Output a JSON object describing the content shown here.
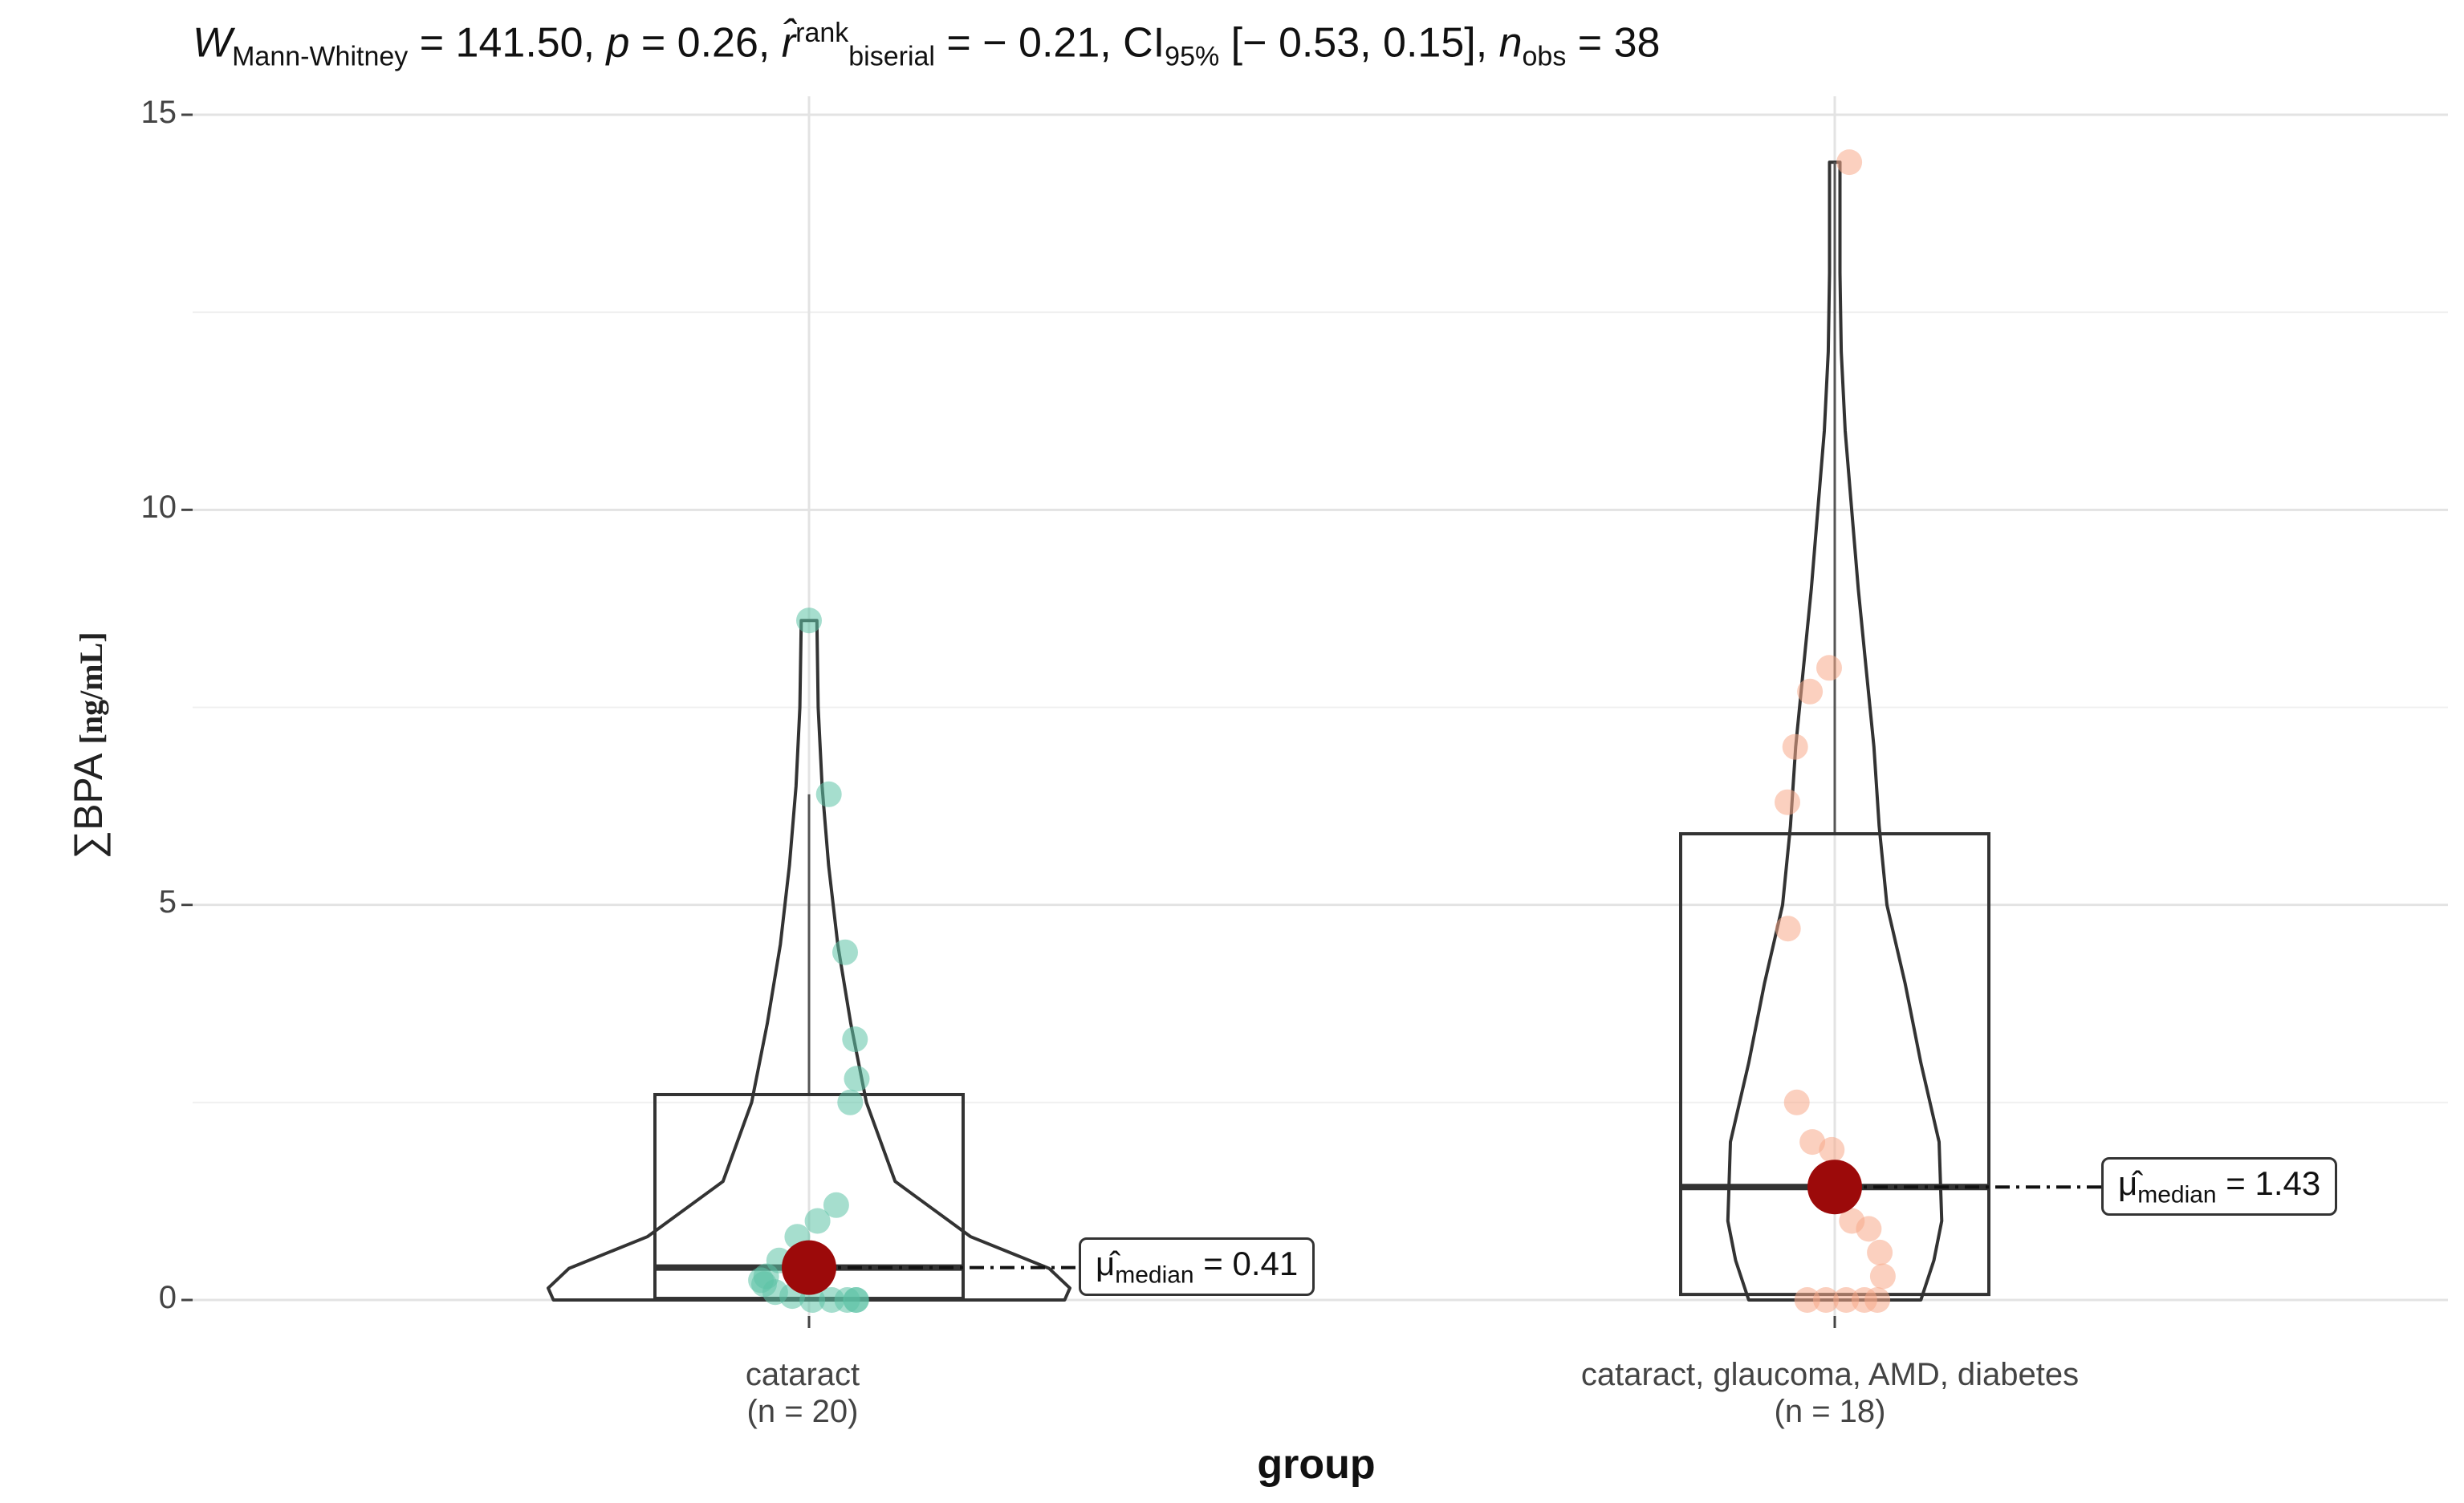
{
  "chart_data": {
    "type": "violin-box-scatter",
    "subtitle": {
      "w_symbol": "W",
      "w_sub": "Mann-Whitney",
      "w_value": " = 141.50, ",
      "p_symbol": "p",
      "p_value": " = 0.26, ",
      "r_symbol": "r̂",
      "r_sup": "rank",
      "r_sub": "biserial",
      "r_value": " = − 0.21, CI",
      "ci_sub": "95%",
      "ci_value": " [− 0.53, 0.15], ",
      "n_symbol": "n",
      "n_sub": "obs",
      "n_value": " = 38"
    },
    "ylabel_main": "∑BPA",
    "ylabel_unit": "[ng/mL]",
    "xlabel": "group",
    "ylim": [
      0,
      15
    ],
    "yticks": [
      "0",
      "5",
      "10",
      "15"
    ],
    "grid": true,
    "groups": [
      {
        "name": "cataract",
        "n_label": "(n = 20)",
        "color": "#5cc2a6",
        "box": {
          "q1": 0.02,
          "median": 0.41,
          "q3": 2.6,
          "whisker_low": 0.0,
          "whisker_high": 6.4,
          "max": 8.6
        },
        "median_label_mu": "μ̂",
        "median_label_sub": "median",
        "median_label_value": " = 0.41",
        "points": [
          8.6,
          6.4,
          4.4,
          3.3,
          2.8,
          2.5,
          1.2,
          1.0,
          0.8,
          0.5,
          0.3,
          0.25,
          0.2,
          0.1,
          0.05,
          0.0,
          0.0,
          0.0,
          0.0,
          0.0
        ],
        "violin": [
          [
            0.0,
            0.98
          ],
          [
            0.15,
            1.0
          ],
          [
            0.4,
            0.92
          ],
          [
            0.8,
            0.62
          ],
          [
            1.5,
            0.33
          ],
          [
            2.5,
            0.22
          ],
          [
            3.5,
            0.16
          ],
          [
            4.5,
            0.11
          ],
          [
            5.5,
            0.075
          ],
          [
            6.5,
            0.05
          ],
          [
            7.5,
            0.035
          ],
          [
            8.6,
            0.03
          ]
        ]
      },
      {
        "name": "cataract, glaucoma, AMD, diabetes",
        "n_label": "(n = 18)",
        "color": "#f7a98a",
        "box": {
          "q1": 0.07,
          "median": 1.43,
          "q3": 5.9,
          "whisker_low": 0.0,
          "whisker_high": 14.4,
          "max": 14.4
        },
        "median_label_mu": "μ̂",
        "median_label_sub": "median",
        "median_label_value": " = 1.43",
        "points": [
          14.4,
          8.0,
          7.7,
          7.0,
          6.3,
          4.7,
          2.5,
          2.0,
          1.9,
          1.0,
          0.9,
          0.6,
          0.3,
          0.0,
          0.0,
          0.0,
          0.0,
          0.0
        ],
        "violin": [
          [
            0.0,
            0.33
          ],
          [
            0.5,
            0.38
          ],
          [
            1.0,
            0.41
          ],
          [
            2.0,
            0.4
          ],
          [
            3.0,
            0.33
          ],
          [
            4.0,
            0.27
          ],
          [
            5.0,
            0.2
          ],
          [
            6.0,
            0.17
          ],
          [
            7.0,
            0.15
          ],
          [
            8.0,
            0.12
          ],
          [
            9.0,
            0.09
          ],
          [
            10.0,
            0.065
          ],
          [
            11.0,
            0.04
          ],
          [
            12.0,
            0.025
          ],
          [
            13.0,
            0.02
          ],
          [
            14.4,
            0.02
          ]
        ]
      }
    ],
    "median_dot_color": "#9c0a0a"
  }
}
